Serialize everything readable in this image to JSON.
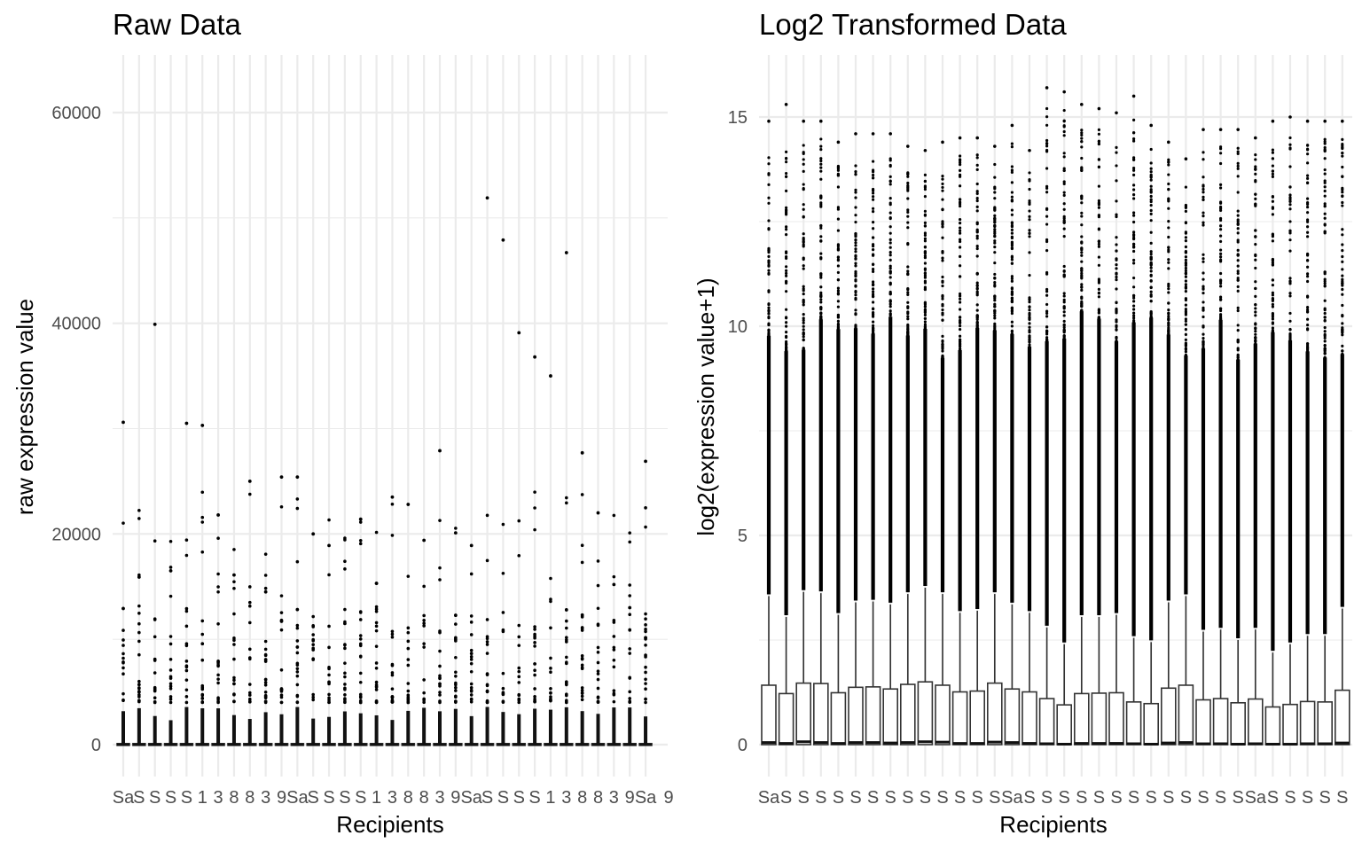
{
  "chart_data": [
    {
      "type": "boxplot",
      "title": "Raw Data",
      "xlabel": "Recipients",
      "ylabel": "raw expression value",
      "ylim": [
        -3000,
        65500
      ],
      "yticks": [
        0,
        20000,
        40000,
        60000
      ],
      "ytick_labels": [
        "0",
        "20000",
        "40000",
        "60000"
      ],
      "n_samples": 34,
      "x_tick_labels_visible": [
        "Sa",
        "S",
        "S",
        "S",
        "S",
        "1",
        "3",
        "8",
        "8",
        "3",
        "9"
      ],
      "x_tick_label_tail": "9",
      "grid": true,
      "legend": "none",
      "series": {
        "box_q1": 0,
        "box_median": 0,
        "box_q3": 100,
        "upper_whisker_max": 3300,
        "max_outliers": [
          30600,
          15900,
          39900,
          16500,
          30500,
          30300,
          21800,
          16100,
          25000,
          14500,
          25400,
          25400,
          20000,
          18900,
          11500,
          21400,
          15300,
          23500,
          22800,
          19400,
          27900,
          20100,
          18900,
          51900,
          47900,
          39100,
          36800,
          35000,
          46700,
          27700,
          22000,
          15200,
          13000,
          26900,
          26700,
          26500,
          23500,
          29900,
          31200,
          30600,
          31200,
          30700
        ]
      }
    },
    {
      "type": "boxplot",
      "title": "Log2 Transformed Data",
      "xlabel": "Recipients",
      "ylabel": "log2(expression value+1)",
      "ylim": [
        -0.5,
        16.4
      ],
      "yticks": [
        0,
        5,
        10,
        15
      ],
      "ytick_labels": [
        "0",
        "5",
        "10",
        "15"
      ],
      "n_samples": 34,
      "x_tick_labels_visible": [
        "Sa",
        "S",
        "S",
        "S",
        "S",
        "S",
        "S",
        "S",
        "S",
        "S",
        "S",
        "S",
        "S",
        "S"
      ],
      "grid": true,
      "legend": "none",
      "boxes_q3": [
        1.42,
        1.22,
        1.47,
        1.46,
        1.24,
        1.37,
        1.38,
        1.33,
        1.44,
        1.5,
        1.42,
        1.26,
        1.28,
        1.47,
        1.33,
        1.26,
        1.1,
        0.95,
        1.22,
        1.23,
        1.24,
        1.02,
        0.98,
        1.35,
        1.42,
        1.07,
        1.1,
        1.0,
        1.09,
        0.9,
        0.96,
        1.03,
        1.02,
        1.3
      ],
      "boxes_median": [
        0.05,
        0.03,
        0.07,
        0.05,
        0.03,
        0.05,
        0.05,
        0.04,
        0.05,
        0.07,
        0.06,
        0.03,
        0.03,
        0.06,
        0.05,
        0.03,
        0.02,
        0.01,
        0.03,
        0.03,
        0.03,
        0.02,
        0.01,
        0.04,
        0.05,
        0.02,
        0.02,
        0.01,
        0.02,
        0.01,
        0.01,
        0.02,
        0.02,
        0.04
      ],
      "whisker_top": [
        3.55,
        3.05,
        3.65,
        3.62,
        3.1,
        3.4,
        3.42,
        3.35,
        3.6,
        3.75,
        3.6,
        3.15,
        3.2,
        3.6,
        3.35,
        3.15,
        2.8,
        2.4,
        3.05,
        3.05,
        3.1,
        2.55,
        2.45,
        3.4,
        3.55,
        2.7,
        2.75,
        2.5,
        2.75,
        2.2,
        2.4,
        2.6,
        2.6,
        3.25
      ],
      "max_values": [
        14.9,
        15.3,
        14.9,
        14.9,
        14.4,
        14.6,
        14.6,
        14.6,
        14.3,
        14.2,
        14.4,
        14.5,
        14.5,
        14.3,
        14.8,
        14.2,
        15.7,
        15.6,
        15.3,
        15.2,
        15.1,
        15.5,
        14.8,
        14.4,
        14.0,
        14.7,
        14.7,
        14.7,
        14.5,
        14.9,
        15.0,
        14.9,
        14.9,
        14.9
      ]
    }
  ]
}
